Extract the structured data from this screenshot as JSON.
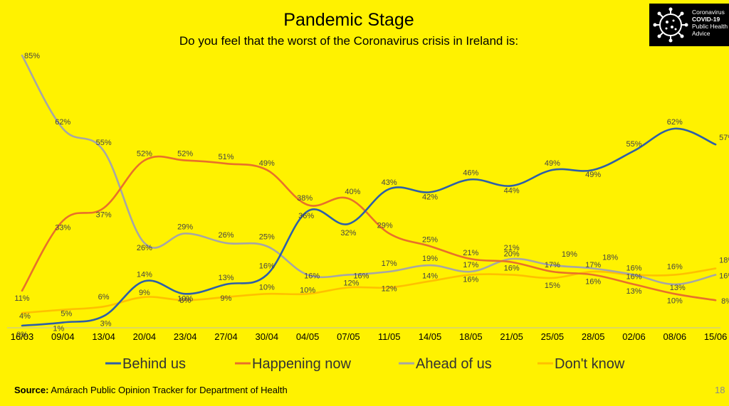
{
  "title": "Pandemic Stage",
  "subtitle": "Do you feel that the worst of the Coronavirus crisis in Ireland is:",
  "logo": {
    "line1": "Coronavirus",
    "line2": "COVID-19",
    "line3": "Public Health",
    "line4": "Advice"
  },
  "source": {
    "label": "Source:",
    "text": "Amárach Public Opinion Tracker for Department of Health"
  },
  "page_number": "18",
  "chart_data": {
    "type": "line",
    "title": "Pandemic Stage",
    "subtitle": "Do you feel that the worst of the Coronavirus crisis in Ireland is:",
    "xlabel": "",
    "ylabel": "",
    "ylim": [
      0,
      90
    ],
    "grid": false,
    "legend_position": "bottom",
    "categories": [
      "16/03",
      "09/04",
      "13/04",
      "20/04",
      "23/04",
      "27/04",
      "30/04",
      "04/05",
      "07/05",
      "11/05",
      "14/05",
      "18/05",
      "21/05",
      "25/05",
      "28/05",
      "02/06",
      "08/06",
      "15/06"
    ],
    "series": [
      {
        "name": "Behind us",
        "color": "#2E5FA8",
        "values": [
          0,
          1,
          3,
          14,
          10,
          13,
          16,
          36,
          32,
          43,
          42,
          46,
          44,
          49,
          49,
          55,
          62,
          57
        ]
      },
      {
        "name": "Happening now",
        "color": "#E8702A",
        "values": [
          11,
          33,
          37,
          52,
          52,
          51,
          49,
          38,
          40,
          29,
          25,
          21,
          20,
          17,
          16,
          13,
          10,
          8
        ]
      },
      {
        "name": "Ahead of us",
        "color": "#A6A6A6",
        "values": [
          85,
          62,
          55,
          26,
          29,
          26,
          25,
          16,
          16,
          17,
          19,
          17,
          21,
          19,
          18,
          16,
          13,
          16
        ]
      },
      {
        "name": "Don't know",
        "color": "#FFC000",
        "values": [
          4,
          5,
          6,
          9,
          8,
          9,
          10,
          10,
          12,
          12,
          14,
          16,
          16,
          15,
          17,
          16,
          16,
          18
        ]
      }
    ],
    "data_labels": [
      [
        "0%",
        "1%",
        "3%",
        "14%",
        "10%",
        "13%",
        "16%",
        "36%",
        "32%",
        "43%",
        "42%",
        "46%",
        "44%",
        "49%",
        "49%",
        "55%",
        "62%",
        "57%"
      ],
      [
        "11%",
        "33%",
        "37%",
        "52%",
        "52%",
        "51%",
        "49%",
        "38%",
        "40%",
        "29%",
        "25%",
        "21%",
        "20%",
        "17%",
        "16%",
        "13%",
        "10%",
        "8%"
      ],
      [
        "85%",
        "62%",
        "55%",
        "26%",
        "29%",
        "26%",
        "25%",
        "16%",
        "16%",
        "17%",
        "19%",
        "17%",
        "21%",
        "19%",
        "18%",
        "16%",
        "13%",
        "16%"
      ],
      [
        "4%",
        "5%",
        "6%",
        "9%",
        "8%",
        "9%",
        "10%",
        "10%",
        "12%",
        "12%",
        "14%",
        "16%",
        "16%",
        "15%",
        "17%",
        "16%",
        "16%",
        "18%"
      ]
    ]
  }
}
